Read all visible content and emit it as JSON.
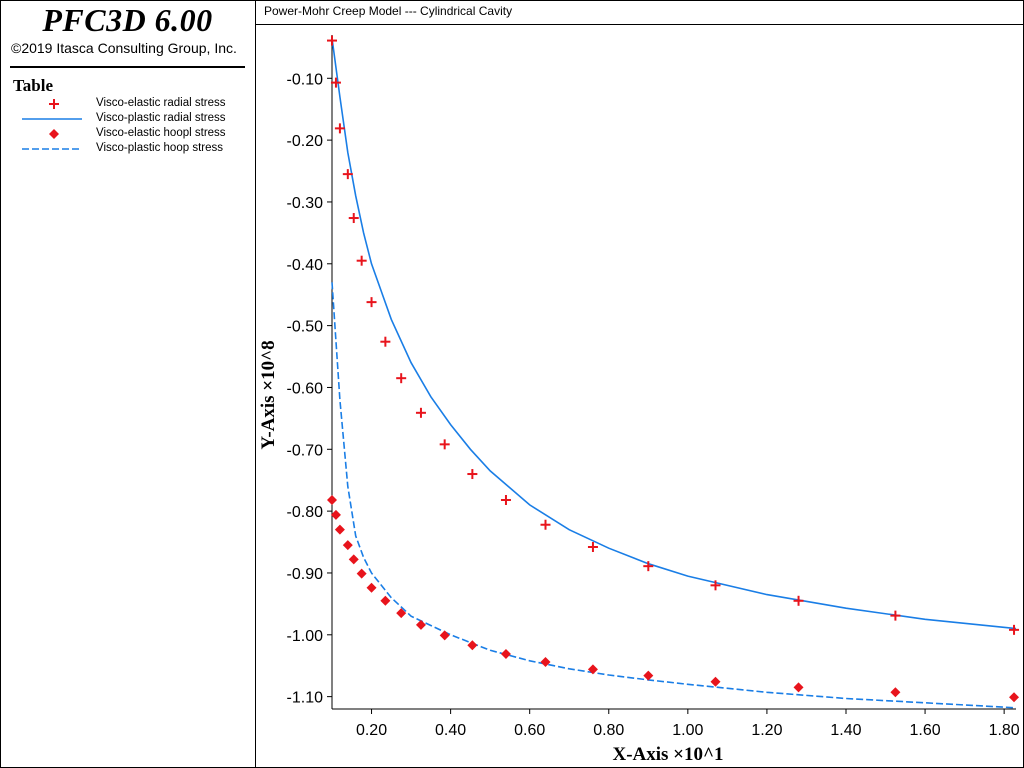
{
  "app": {
    "title": "PFC3D 6.00",
    "copyright": "©2019 Itasca Consulting Group, Inc."
  },
  "legend": {
    "heading": "Table",
    "items": [
      {
        "label": "Visco-elastic radial stress",
        "marker": "plus",
        "color": "#e8141c"
      },
      {
        "label": "Visco-plastic radial stress",
        "marker": "solid-line",
        "color": "#1a7ee6"
      },
      {
        "label": "Visco-elastic hoopl stress",
        "marker": "diamond",
        "color": "#e8141c"
      },
      {
        "label": "Visco-plastic hoop stress",
        "marker": "dashed-line",
        "color": "#1a7ee6"
      }
    ]
  },
  "colors": {
    "marker_red": "#e8141c",
    "line_blue": "#1a7ee6"
  },
  "chart_data": {
    "type": "line",
    "title": "Power-Mohr Creep Model --- Cylindrical Cavity",
    "xlabel": "X-Axis ×10^1",
    "ylabel": "Y-Axis ×10^8",
    "xlim": [
      0.1,
      1.83
    ],
    "ylim": [
      -1.12,
      -0.03
    ],
    "xticks": [
      "0.20",
      "0.40",
      "0.60",
      "0.80",
      "1.00",
      "1.20",
      "1.40",
      "1.60",
      "1.80"
    ],
    "yticks": [
      "-0.10",
      "-0.20",
      "-0.30",
      "-0.40",
      "-0.50",
      "-0.60",
      "-0.70",
      "-0.80",
      "-0.90",
      "-1.00",
      "-1.10"
    ],
    "grid": false,
    "legend_position": "left-panel",
    "series": [
      {
        "name": "Visco-elastic radial stress",
        "style": "markers-plus",
        "x": [
          0.1,
          0.11,
          0.12,
          0.14,
          0.155,
          0.175,
          0.2,
          0.235,
          0.275,
          0.325,
          0.385,
          0.455,
          0.54,
          0.64,
          0.76,
          0.9,
          1.07,
          1.28,
          1.525,
          1.825
        ],
        "y": [
          -0.039,
          -0.107,
          -0.181,
          -0.255,
          -0.326,
          -0.395,
          -0.462,
          -0.526,
          -0.585,
          -0.641,
          -0.692,
          -0.74,
          -0.782,
          -0.822,
          -0.858,
          -0.889,
          -0.92,
          -0.945,
          -0.969,
          -0.992
        ]
      },
      {
        "name": "Visco-plastic radial stress",
        "style": "solid",
        "x": [
          0.1,
          0.12,
          0.14,
          0.16,
          0.18,
          0.2,
          0.25,
          0.3,
          0.35,
          0.4,
          0.45,
          0.5,
          0.6,
          0.7,
          0.8,
          0.9,
          1.0,
          1.2,
          1.4,
          1.6,
          1.83
        ],
        "y": [
          -0.035,
          -0.13,
          -0.22,
          -0.29,
          -0.35,
          -0.4,
          -0.49,
          -0.56,
          -0.615,
          -0.66,
          -0.7,
          -0.735,
          -0.79,
          -0.83,
          -0.86,
          -0.885,
          -0.905,
          -0.935,
          -0.957,
          -0.975,
          -0.99
        ]
      },
      {
        "name": "Visco-elastic hoopl stress",
        "style": "markers-diamond",
        "x": [
          0.1,
          0.11,
          0.12,
          0.14,
          0.155,
          0.175,
          0.2,
          0.235,
          0.275,
          0.325,
          0.385,
          0.455,
          0.54,
          0.64,
          0.76,
          0.9,
          1.07,
          1.28,
          1.525,
          1.825
        ],
        "y": [
          -0.782,
          -0.806,
          -0.83,
          -0.855,
          -0.878,
          -0.901,
          -0.924,
          -0.945,
          -0.965,
          -0.984,
          -1.001,
          -1.017,
          -1.031,
          -1.044,
          -1.056,
          -1.066,
          -1.076,
          -1.085,
          -1.093,
          -1.101
        ]
      },
      {
        "name": "Visco-plastic hoop stress",
        "style": "dashed",
        "x": [
          0.1,
          0.12,
          0.14,
          0.16,
          0.18,
          0.2,
          0.25,
          0.3,
          0.4,
          0.5,
          0.6,
          0.7,
          0.8,
          0.9,
          1.0,
          1.2,
          1.4,
          1.6,
          1.83
        ],
        "y": [
          -0.43,
          -0.62,
          -0.76,
          -0.84,
          -0.875,
          -0.9,
          -0.94,
          -0.97,
          -1.0,
          -1.025,
          -1.042,
          -1.055,
          -1.065,
          -1.073,
          -1.08,
          -1.093,
          -1.103,
          -1.11,
          -1.118
        ]
      }
    ]
  }
}
